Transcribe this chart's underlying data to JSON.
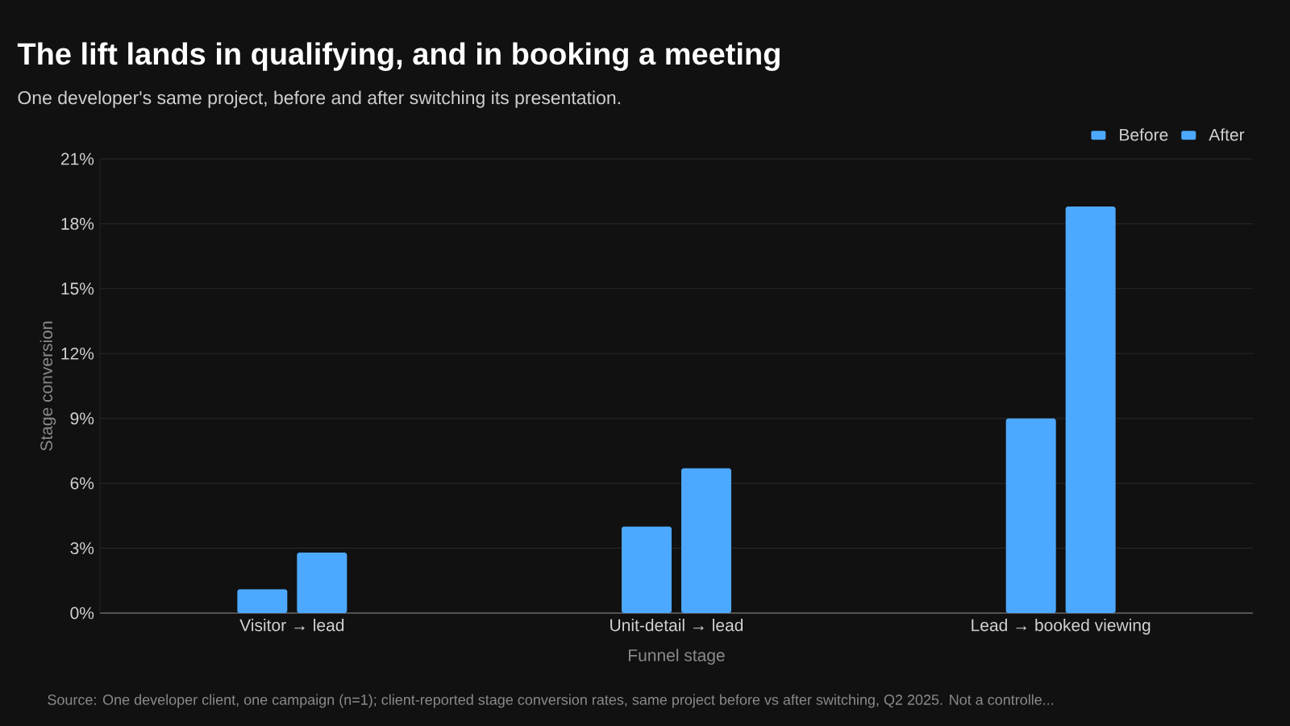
{
  "chart_data": {
    "type": "bar",
    "title": "The lift lands in qualifying, and in booking a meeting",
    "subtitle": "One developer's same project, before and after switching its presentation.",
    "xlabel": "Funnel stage",
    "ylabel": "Stage conversion",
    "categories": [
      "Visitor → lead",
      "Unit-detail → lead",
      "Lead → booked viewing"
    ],
    "series": [
      {
        "name": "Before",
        "color": "#4da8ff",
        "values": [
          1.1,
          4.0,
          9.0
        ]
      },
      {
        "name": "After",
        "color": "#4da8ff",
        "values": [
          2.8,
          6.7,
          18.8
        ]
      }
    ],
    "ylim": [
      0,
      21
    ],
    "yticks": [
      {
        "value": 0,
        "label": "0%"
      },
      {
        "value": 3,
        "label": "3%"
      },
      {
        "value": 6,
        "label": "6%"
      },
      {
        "value": 9,
        "label": "9%"
      },
      {
        "value": 12,
        "label": "12%"
      },
      {
        "value": 15,
        "label": "15%"
      },
      {
        "value": 18,
        "label": "18%"
      },
      {
        "value": 21,
        "label": "21%"
      }
    ],
    "grid": "y",
    "legend": "top right",
    "annotations": [
      "Source: One developer client, one campaign (n=1); client-reported stage conversion rates, same project before vs after switching, Q2 2025. Not a controlle..."
    ]
  }
}
